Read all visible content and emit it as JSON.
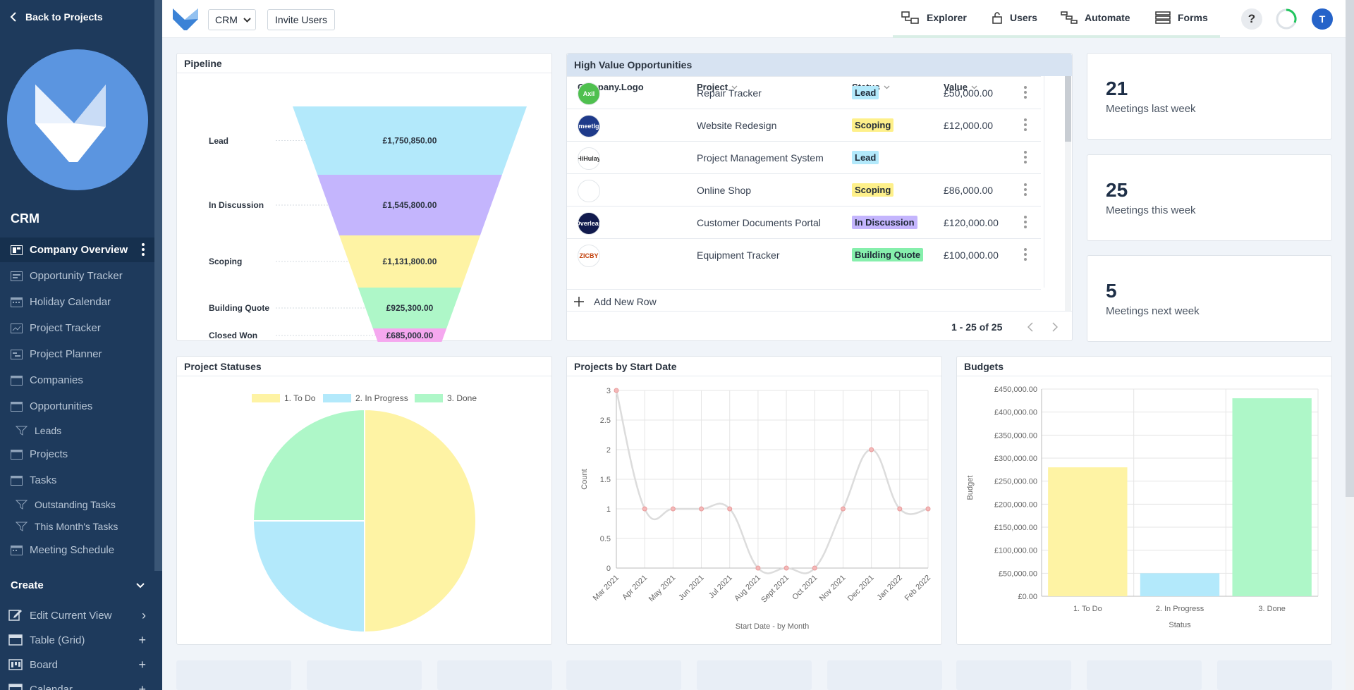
{
  "sidebar": {
    "back_label": "Back to Projects",
    "app_title": "CRM",
    "nav_items": [
      {
        "label": "Company Overview"
      },
      {
        "label": "Opportunity Tracker"
      },
      {
        "label": "Holiday Calendar"
      },
      {
        "label": "Project Tracker"
      },
      {
        "label": "Project Planner"
      },
      {
        "label": "Companies"
      },
      {
        "label": "Opportunities"
      },
      {
        "label": "Leads"
      },
      {
        "label": "Projects"
      },
      {
        "label": "Tasks"
      },
      {
        "label": "Outstanding Tasks"
      },
      {
        "label": "This Month's Tasks"
      },
      {
        "label": "Meeting Schedule"
      }
    ],
    "create_label": "Create",
    "create_items": [
      {
        "label": "Edit Current View",
        "action": "›"
      },
      {
        "label": "Table (Grid)",
        "action": "+"
      },
      {
        "label": "Board",
        "action": "+"
      },
      {
        "label": "Calendar",
        "action": "+"
      }
    ]
  },
  "header": {
    "app_select": "CRM",
    "invite_label": "Invite Users",
    "nav": [
      {
        "label": "Explorer",
        "icon": "explorer-icon"
      },
      {
        "label": "Users",
        "icon": "lock-icon"
      },
      {
        "label": "Automate",
        "icon": "automate-icon"
      },
      {
        "label": "Forms",
        "icon": "forms-icon"
      }
    ],
    "help_label": "?",
    "user_initial": "T"
  },
  "pipeline": {
    "title": "Pipeline",
    "stages": [
      {
        "label": "Lead",
        "value": "£1,750,850.00",
        "color": "#b3e9fb"
      },
      {
        "label": "In Discussion",
        "value": "£1,545,800.00",
        "color": "#c4b5fd"
      },
      {
        "label": "Scoping",
        "value": "£1,131,800.00",
        "color": "#fef3a4"
      },
      {
        "label": "Building Quote",
        "value": "£925,300.00",
        "color": "#aef7c8"
      },
      {
        "label": "Closed Won",
        "value": "£685,000.00",
        "color": "#f5a8ef"
      }
    ]
  },
  "hvo": {
    "title": "High Value Opportunities",
    "columns": {
      "logo": "Company.Logo",
      "project": "Project",
      "status": "Status",
      "value": "Value"
    },
    "rows": [
      {
        "logo": "Axil",
        "logo_bg": "#4fc04f",
        "logo_fg": "#ffffff",
        "project": "Repair Tracker",
        "status": "Lead",
        "status_color": "#b3e9fb",
        "value": "£50,000.00"
      },
      {
        "logo": "meetlg",
        "logo_bg": "#1e3a8a",
        "logo_fg": "#ffffff",
        "project": "Website Redesign",
        "status": "Scoping",
        "status_color": "#fef08a",
        "value": "£12,000.00"
      },
      {
        "logo": "HiHulay",
        "logo_bg": "#ffffff",
        "logo_fg": "#333333",
        "project": "Project Management System",
        "status": "Lead",
        "status_color": "#b3e9fb",
        "value": ""
      },
      {
        "logo": "",
        "logo_bg": "#ffffff",
        "logo_fg": "#e0457b",
        "project": "Online Shop",
        "status": "Scoping",
        "status_color": "#fef08a",
        "value": "£86,000.00"
      },
      {
        "logo": "Overleap",
        "logo_bg": "#111a4d",
        "logo_fg": "#ffffff",
        "project": "Customer Documents Portal",
        "status": "In Discussion",
        "status_color": "#c4b5fd",
        "value": "£120,000.00"
      },
      {
        "logo": "ZICBY",
        "logo_bg": "#ffffff",
        "logo_fg": "#c2410c",
        "project": "Equipment Tracker",
        "status": "Building Quote",
        "status_color": "#86efac",
        "value": "£100,000.00"
      }
    ],
    "add_row_label": "Add New Row",
    "pager": "1 - 25 of 25"
  },
  "stats": [
    {
      "value": "21",
      "label": "Meetings last week"
    },
    {
      "value": "25",
      "label": "Meetings this week"
    },
    {
      "value": "5",
      "label": "Meetings next week"
    }
  ],
  "project_statuses": {
    "title": "Project Statuses",
    "chart_data": {
      "type": "pie",
      "labels": [
        "1. To Do",
        "2. In Progress",
        "3. Done"
      ],
      "values": [
        50,
        25,
        25
      ],
      "colors": [
        "#fef3a4",
        "#b3e9fb",
        "#aef7c8"
      ],
      "legend": "top"
    }
  },
  "projects_by_start": {
    "title": "Projects by Start Date",
    "chart_data": {
      "type": "line",
      "x": [
        "Mar 2021",
        "Apr 2021",
        "May 2021",
        "Jun 2021",
        "Jul 2021",
        "Aug 2021",
        "Sept 2021",
        "Oct 2021",
        "Nov 2021",
        "Dec 2021",
        "Jan 2022",
        "Feb 2022"
      ],
      "values": [
        3,
        1,
        1,
        1,
        1,
        0,
        0,
        0,
        1,
        2,
        1,
        1
      ],
      "yticks": [
        "0",
        "0.5",
        "1",
        "1.5",
        "2",
        "2.5",
        "3"
      ],
      "ylim": [
        0,
        3
      ],
      "xlabel": "Start Date - by Month",
      "ylabel": "Count",
      "grid": true
    }
  },
  "budgets": {
    "title": "Budgets",
    "chart_data": {
      "type": "bar",
      "categories": [
        "1. To Do",
        "2. In Progress",
        "3. Done"
      ],
      "values": [
        280000,
        50000,
        430000
      ],
      "colors": [
        "#fef3a4",
        "#b3e9fb",
        "#aef7c8"
      ],
      "yticks": [
        "£0.00",
        "£50,000.00",
        "£100,000.00",
        "£150,000.00",
        "£200,000.00",
        "£250,000.00",
        "£300,000.00",
        "£350,000.00",
        "£400,000.00",
        "£450,000.00"
      ],
      "ylim": [
        0,
        450000
      ],
      "xlabel": "Status",
      "ylabel": "Budget",
      "grid": true
    }
  }
}
